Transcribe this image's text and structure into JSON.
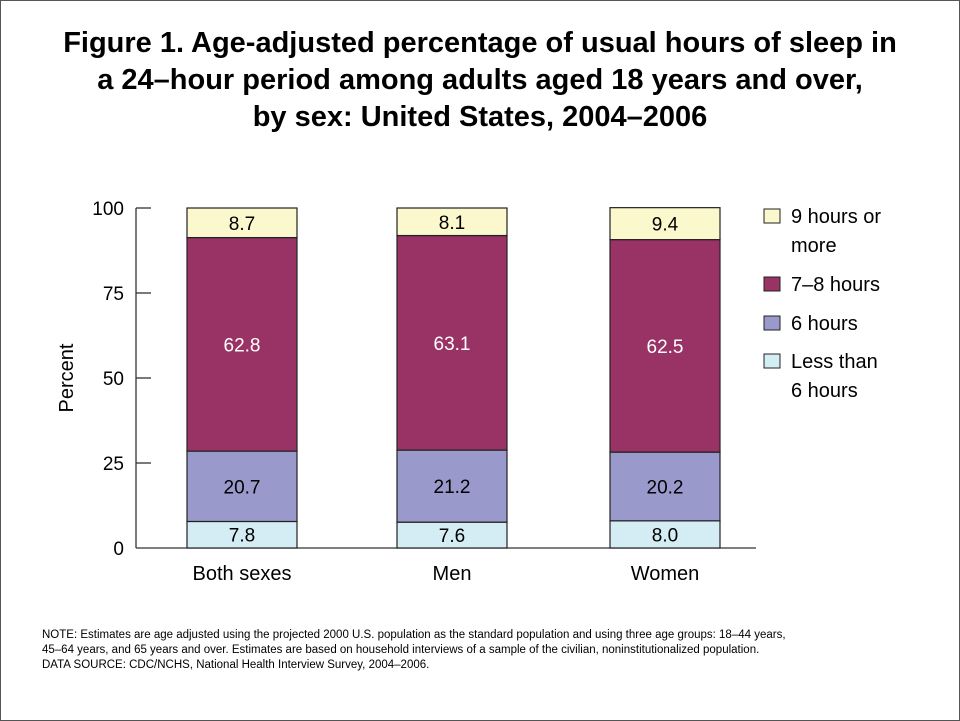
{
  "title_lines": [
    "Figure 1. Age-adjusted percentage of usual hours of sleep in",
    "a 24–hour period among adults aged 18 years and over,",
    "by sex: United States, 2004–2006"
  ],
  "chart_data": {
    "type": "bar",
    "stacked": true,
    "title": "Figure 1. Age-adjusted percentage of usual hours of sleep in a 24–hour period among adults aged 18 years and over, by sex: United States, 2004–2006",
    "xlabel": "",
    "ylabel": "Percent",
    "ylim": [
      0,
      100
    ],
    "yticks": [
      "0",
      "25",
      "50",
      "75",
      "100"
    ],
    "ytick_values": [
      0,
      25,
      50,
      75,
      100
    ],
    "categories": [
      "Both sexes",
      "Men",
      "Women"
    ],
    "series": [
      {
        "name": "Less than 6 hours",
        "legend_lines": [
          "Less than",
          "6 hours"
        ],
        "color": "#d4ecf4",
        "label_color": "#000000",
        "values": [
          7.8,
          7.6,
          8.0
        ],
        "labels": [
          "7.8",
          "7.6",
          "8.0"
        ]
      },
      {
        "name": "6 hours",
        "legend_lines": [
          "6 hours"
        ],
        "color": "#9999cc",
        "label_color": "#000000",
        "values": [
          20.7,
          21.2,
          20.2
        ],
        "labels": [
          "20.7",
          "21.2",
          "20.2"
        ]
      },
      {
        "name": "7–8 hours",
        "legend_lines": [
          "7–8 hours"
        ],
        "color": "#993366",
        "label_color": "#ffffff",
        "values": [
          62.8,
          63.1,
          62.5
        ],
        "labels": [
          "62.8",
          "63.1",
          "62.5"
        ]
      },
      {
        "name": "9 hours or more",
        "legend_lines": [
          "9 hours or",
          "more"
        ],
        "color": "#faf8cc",
        "label_color": "#000000",
        "values": [
          8.7,
          8.1,
          9.4
        ],
        "labels": [
          "8.7",
          "8.1",
          "9.4"
        ]
      }
    ],
    "legend_position": "right",
    "grid": false
  },
  "notes": [
    "NOTE:  Estimates are age adjusted using the projected 2000 U.S. population as the standard population and using three age groups:  18–44 years,",
    "45–64 years, and 65 years and over.  Estimates are based on household interviews of a sample of the civilian, noninstitutionalized population.",
    "DATA SOURCE:  CDC/NCHS, National Health Interview Survey, 2004–2006."
  ]
}
